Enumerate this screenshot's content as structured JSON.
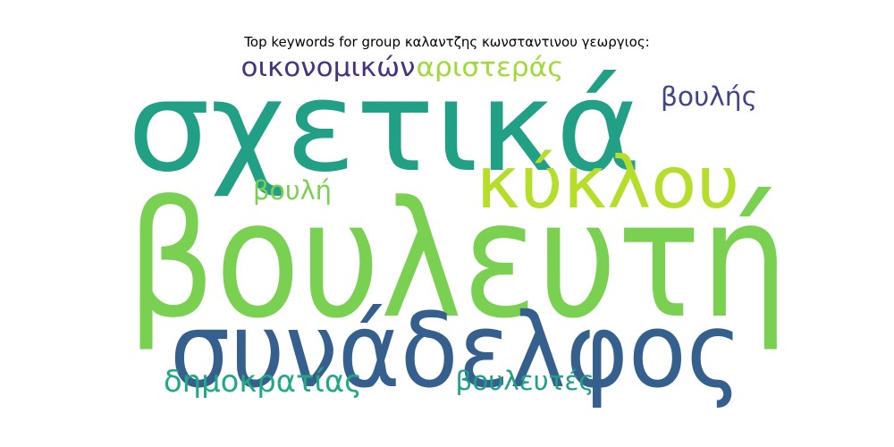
{
  "title": "Top keywords for group καλαντζης κωνσταντινου γεωργιος:",
  "chart_data": {
    "type": "wordcloud",
    "title": "Top keywords for group καλαντζης κωνσταντινου γεωργιος:",
    "words": [
      {
        "text": "βουλευτή",
        "rank": 1,
        "color": "#7ad151"
      },
      {
        "text": "σχετικά",
        "rank": 2,
        "color": "#22a085"
      },
      {
        "text": "συνάδελφος",
        "rank": 3,
        "color": "#355f8d"
      },
      {
        "text": "κύκλου",
        "rank": 4,
        "color": "#b5de2b"
      },
      {
        "text": "αριστεράς",
        "rank": 5,
        "color": "#a0da39"
      },
      {
        "text": "οικονομικών",
        "rank": 6,
        "color": "#46337e"
      },
      {
        "text": "βουλής",
        "rank": 7,
        "color": "#414487"
      },
      {
        "text": "βουλή",
        "rank": 8,
        "color": "#7ad151"
      },
      {
        "text": "δημοκρατίας",
        "rank": 9,
        "color": "#22a884"
      },
      {
        "text": "βουλευτές",
        "rank": 10,
        "color": "#1f9e89"
      }
    ]
  }
}
